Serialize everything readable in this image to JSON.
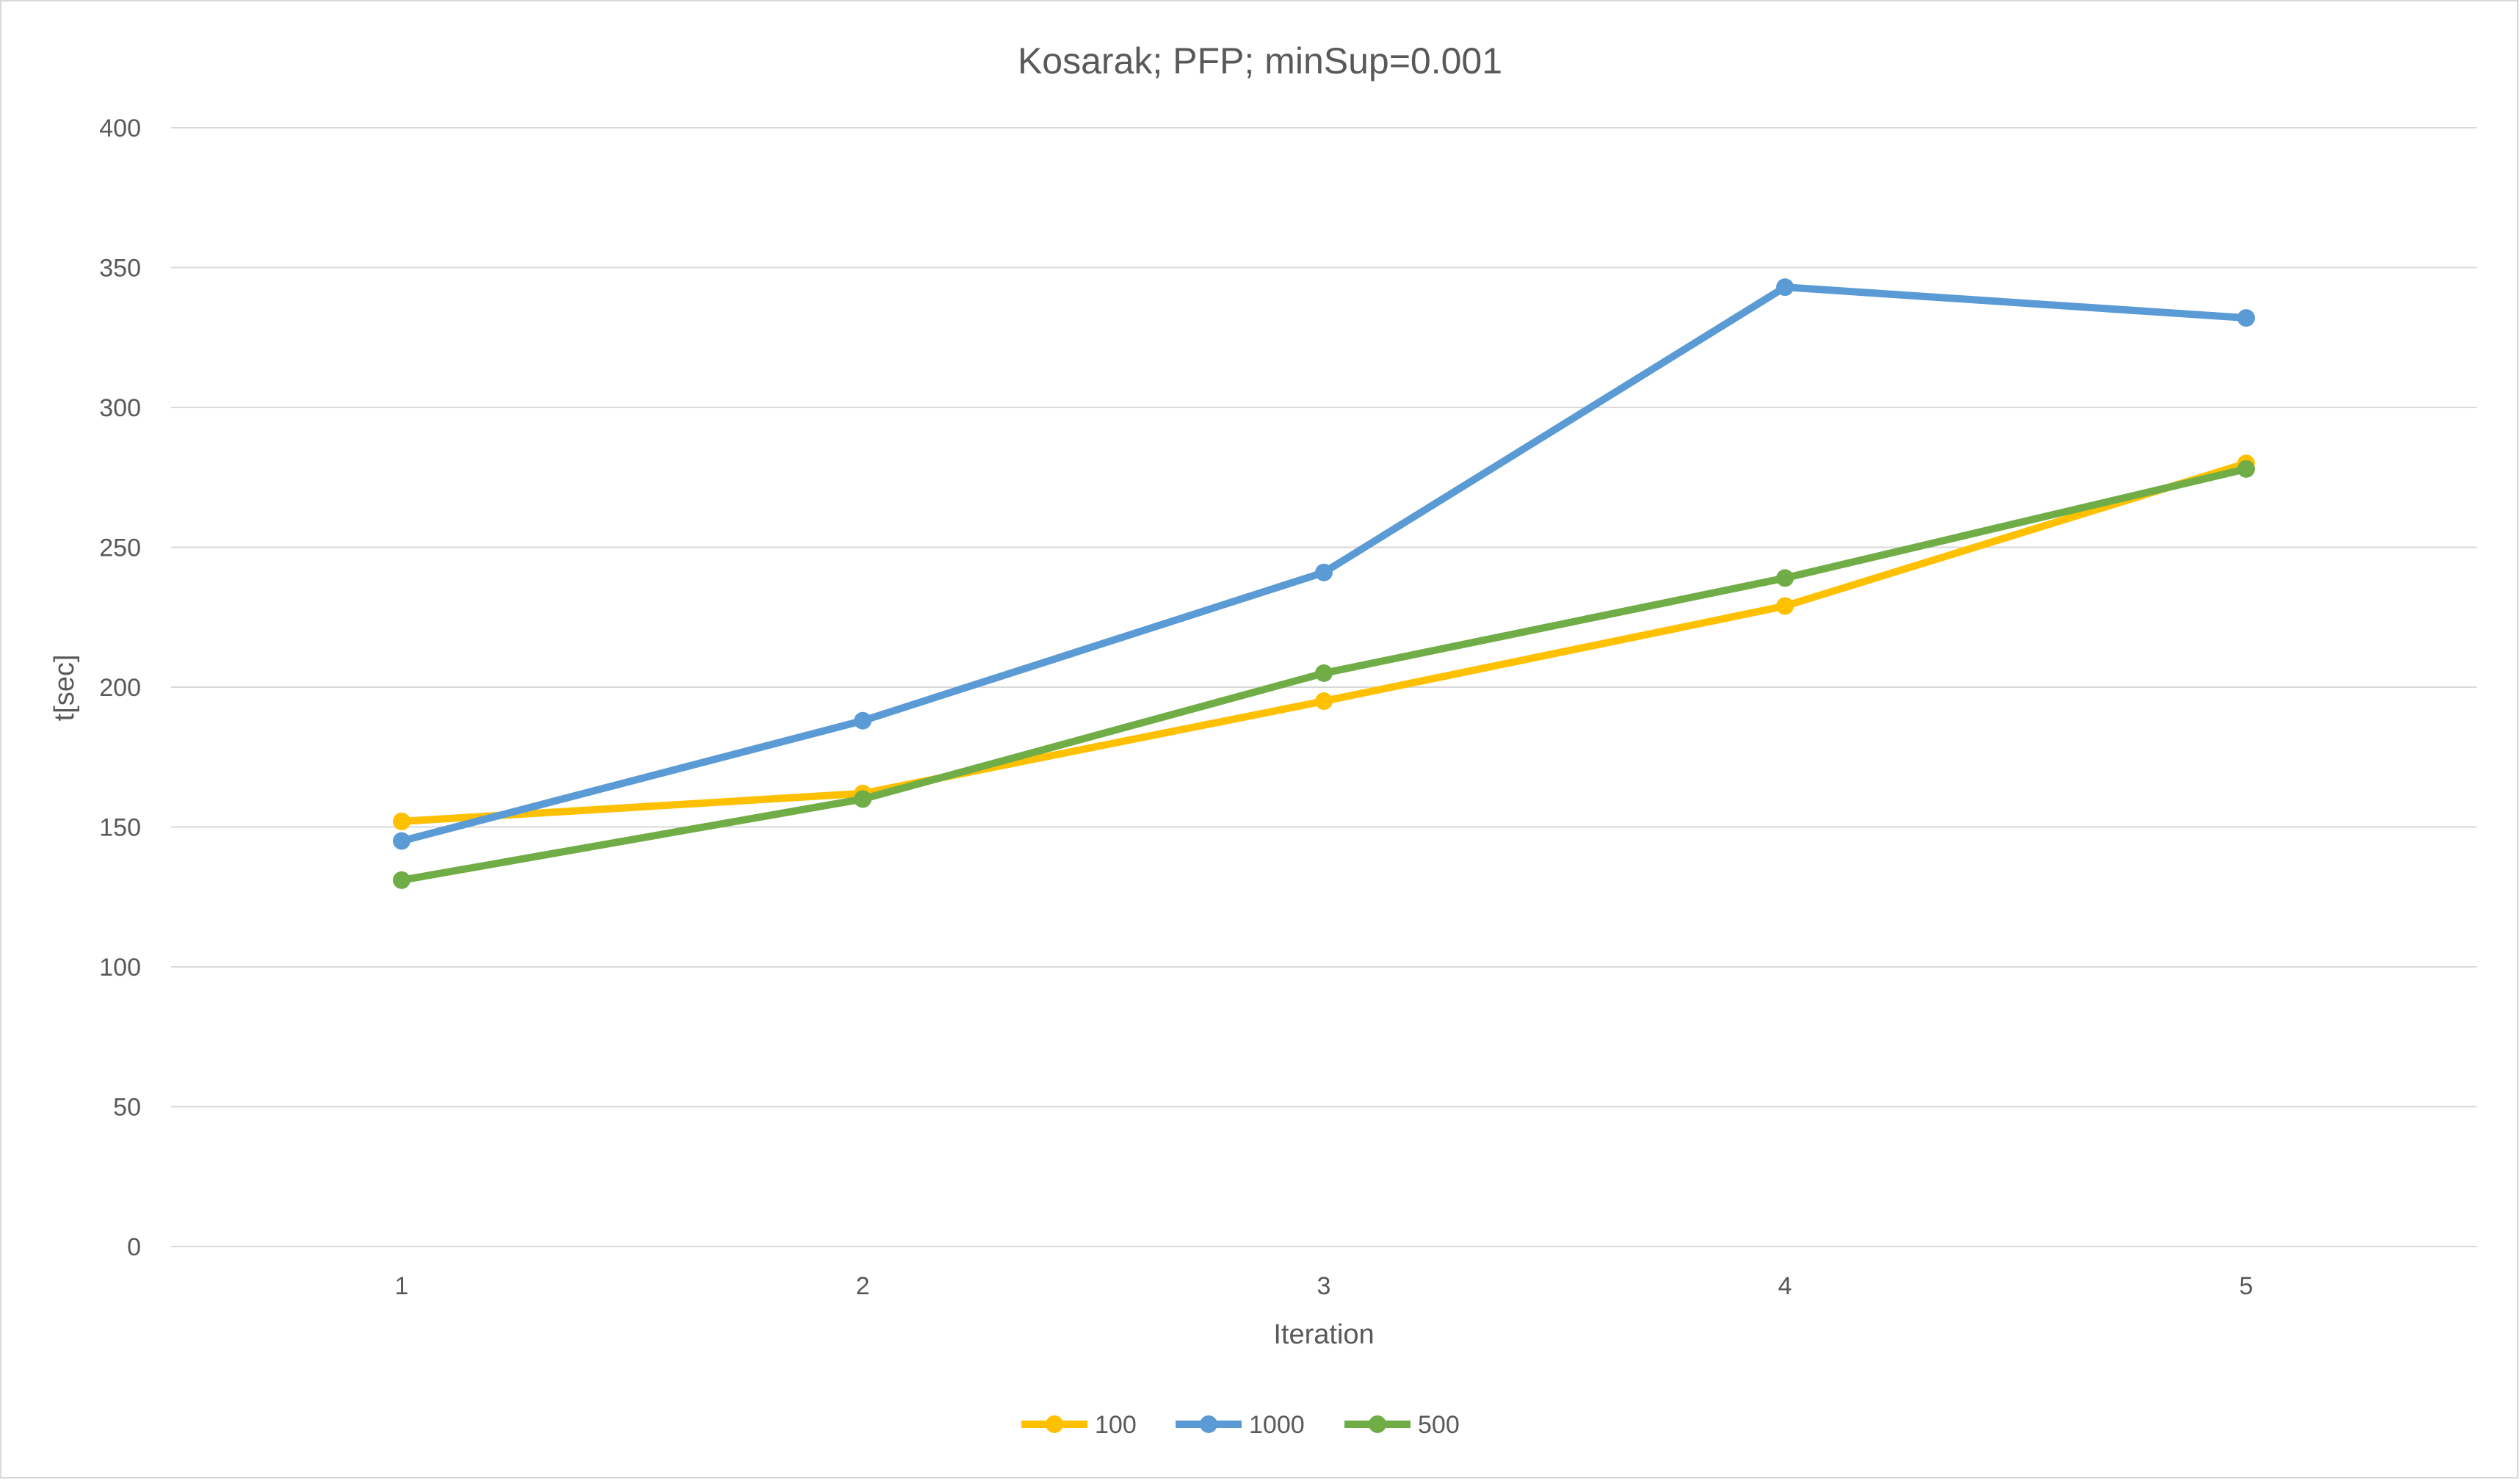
{
  "chart_data": {
    "type": "line",
    "title": "Kosarak; PFP; minSup=0.001",
    "xlabel": "Iteration",
    "ylabel": "t[sec]",
    "categories": [
      "1",
      "2",
      "3",
      "4",
      "5"
    ],
    "ylim": [
      0,
      400
    ],
    "yticks": [
      "0",
      "50",
      "100",
      "150",
      "200",
      "250",
      "300",
      "350",
      "400"
    ],
    "grid": true,
    "legend_position": "bottom",
    "series": [
      {
        "name": "100",
        "color": "#FFC000",
        "values": [
          152,
          162,
          195,
          229,
          280
        ]
      },
      {
        "name": "1000",
        "color": "#5B9BD5",
        "values": [
          145,
          188,
          241,
          343,
          332
        ]
      },
      {
        "name": "500",
        "color": "#70AD47",
        "values": [
          131,
          160,
          205,
          239,
          278
        ]
      }
    ]
  }
}
